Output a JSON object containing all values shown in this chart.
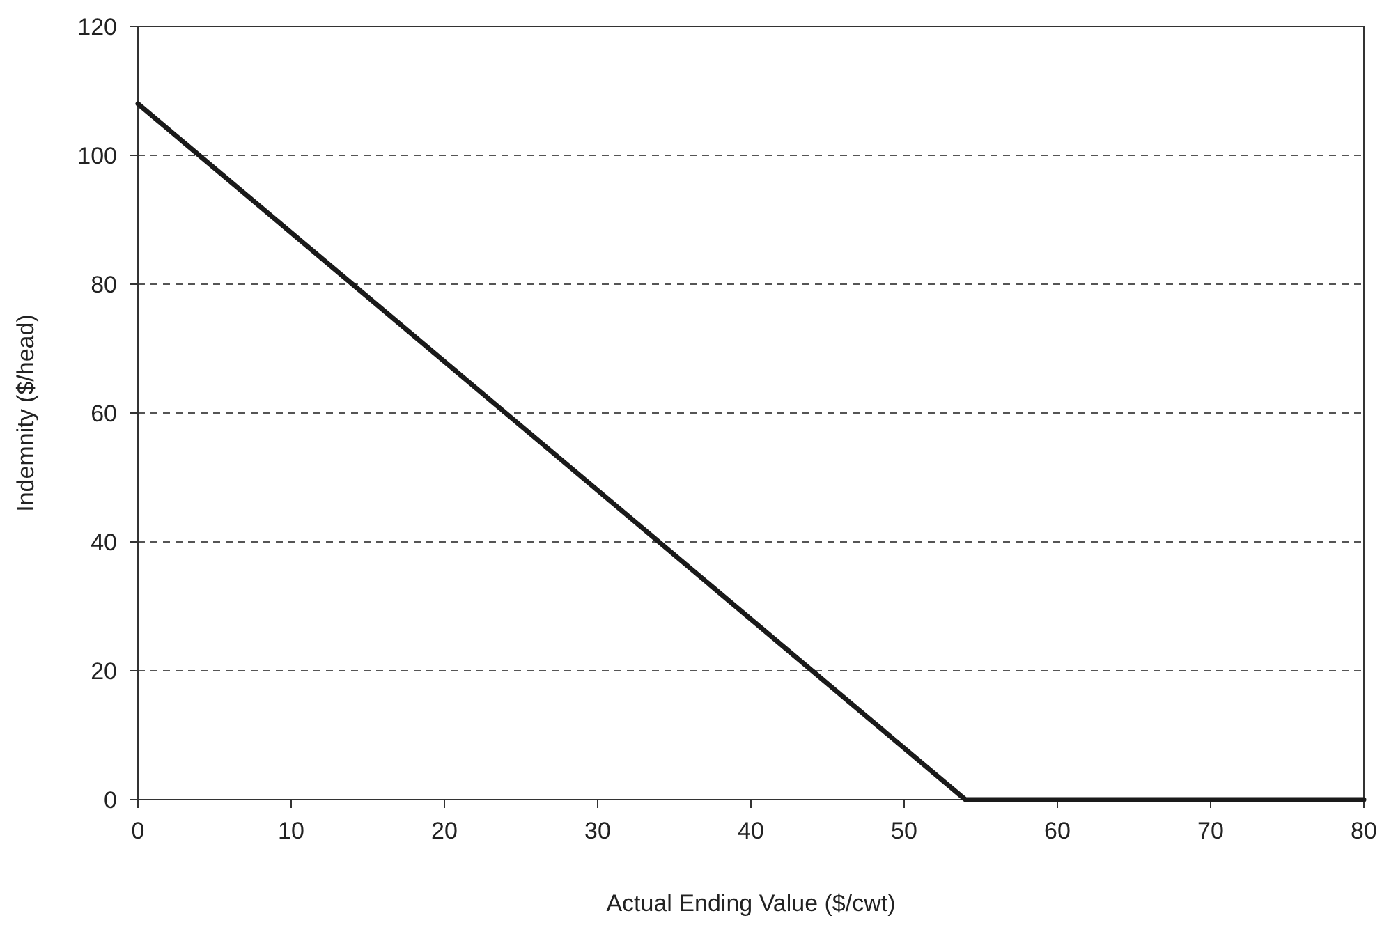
{
  "chart_data": {
    "type": "line",
    "xlabel": "Actual Ending Value ($/cwt)",
    "ylabel": "Indemnity ($/head)",
    "x": [
      0,
      54,
      80
    ],
    "series": [
      {
        "color": "#1a1a1a",
        "values": [
          108,
          0,
          0
        ]
      }
    ],
    "xlim": [
      0,
      80
    ],
    "xticks": [
      0,
      10,
      20,
      30,
      40,
      50,
      60,
      70,
      80
    ],
    "ylim": [
      0,
      120
    ],
    "yticks": [
      0,
      20,
      40,
      60,
      80,
      100,
      120
    ],
    "grid": "y",
    "marker": "none",
    "line_style": "solid"
  }
}
